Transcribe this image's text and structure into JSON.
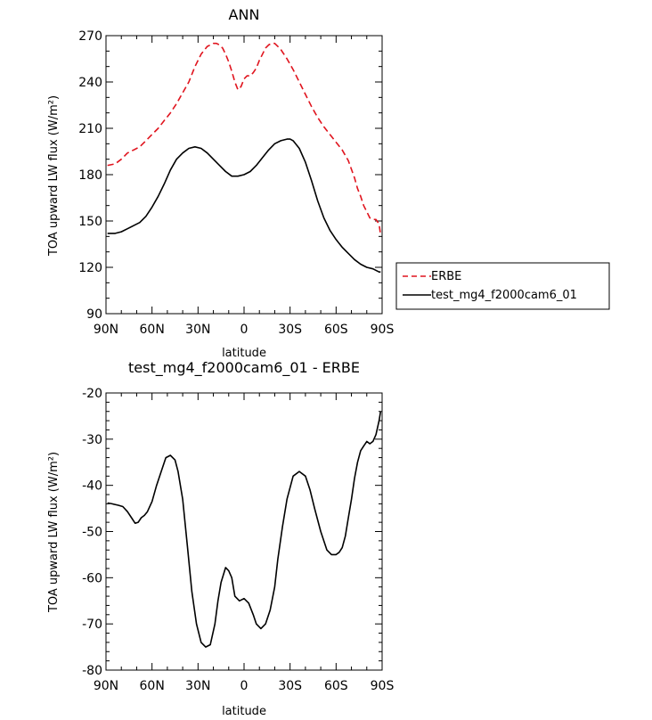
{
  "chart_data": [
    {
      "type": "line",
      "title": "ANN",
      "xlabel": "latitude",
      "ylabel": "TOA upward LW flux (W/m²)",
      "xlim": [
        90,
        -90
      ],
      "ylim": [
        90,
        270
      ],
      "x_ticks": [
        90,
        60,
        30,
        0,
        -30,
        -60,
        -90
      ],
      "x_tick_labels": [
        "90N",
        "60N",
        "30N",
        "0",
        "30S",
        "60S",
        "90S"
      ],
      "y_ticks": [
        90,
        120,
        150,
        180,
        210,
        240,
        270
      ],
      "y_tick_labels": [
        "90",
        "120",
        "150",
        "180",
        "210",
        "240",
        "270"
      ],
      "legend": {
        "placement": "right",
        "entries": [
          "ERBE",
          "test_mg4_f2000cam6_01"
        ]
      },
      "series": [
        {
          "name": "ERBE",
          "color": "#e0141e",
          "dash": "dashed",
          "x": [
            89,
            84,
            80,
            76,
            72,
            68,
            64,
            60,
            56,
            52,
            48,
            44,
            40,
            36,
            32,
            28,
            24,
            20,
            18,
            16,
            14,
            12,
            10,
            8,
            6,
            4,
            2,
            0,
            -2,
            -4,
            -6,
            -8,
            -10,
            -12,
            -14,
            -16,
            -18,
            -20,
            -22,
            -24,
            -28,
            -32,
            -36,
            -40,
            -44,
            -48,
            -52,
            -56,
            -60,
            -64,
            -68,
            -72,
            -74,
            -76,
            -78,
            -80,
            -82,
            -84,
            -86,
            -88,
            -89
          ],
          "y": [
            186,
            187,
            190,
            194,
            196,
            198,
            202,
            206,
            210,
            215,
            220,
            226,
            233,
            240,
            250,
            258,
            263,
            265,
            265,
            264,
            262,
            258,
            253,
            247,
            240,
            235,
            237,
            242,
            244,
            244,
            246,
            249,
            254,
            258,
            262,
            264,
            265,
            265,
            263,
            261,
            255,
            248,
            240,
            232,
            224,
            217,
            211,
            206,
            201,
            196,
            189,
            178,
            171,
            166,
            160,
            156,
            152,
            151,
            151,
            148,
            141
          ]
        },
        {
          "name": "test_mg4_f2000cam6_01",
          "color": "#000000",
          "dash": "solid",
          "x": [
            89,
            84,
            80,
            76,
            72,
            68,
            64,
            60,
            56,
            52,
            48,
            44,
            40,
            36,
            32,
            28,
            24,
            20,
            16,
            12,
            8,
            4,
            0,
            -4,
            -8,
            -12,
            -16,
            -20,
            -24,
            -28,
            -30,
            -32,
            -36,
            -40,
            -44,
            -48,
            -52,
            -56,
            -60,
            -64,
            -68,
            -72,
            -76,
            -80,
            -84,
            -88,
            -89
          ],
          "y": [
            142,
            142,
            143,
            145,
            147,
            149,
            153,
            159,
            166,
            174,
            183,
            190,
            194,
            197,
            198,
            197,
            194,
            190,
            186,
            182,
            179,
            179,
            180,
            182,
            186,
            191,
            196,
            200,
            202,
            203,
            203,
            202,
            197,
            188,
            176,
            163,
            152,
            144,
            138,
            133,
            129,
            125,
            122,
            120,
            119,
            117,
            117
          ]
        }
      ]
    },
    {
      "type": "line",
      "title": "test_mg4_f2000cam6_01 - ERBE",
      "xlabel": "latitude",
      "ylabel": "TOA upward LW flux (W/m²)",
      "xlim": [
        90,
        -90
      ],
      "ylim": [
        -80,
        -20
      ],
      "x_ticks": [
        90,
        60,
        30,
        0,
        -30,
        -60,
        -90
      ],
      "x_tick_labels": [
        "90N",
        "60N",
        "30N",
        "0",
        "30S",
        "60S",
        "90S"
      ],
      "y_ticks": [
        -80,
        -70,
        -60,
        -50,
        -40,
        -30,
        -20
      ],
      "y_tick_labels": [
        "-80",
        "-70",
        "-60",
        "-50",
        "-40",
        "-30",
        "-20"
      ],
      "series": [
        {
          "color": "#000000",
          "dash": "solid",
          "x": [
            89,
            86,
            82,
            79,
            76,
            73,
            71,
            69,
            67,
            65,
            63,
            60,
            57,
            54,
            51,
            48,
            45,
            43,
            40,
            37,
            34,
            31,
            28,
            25,
            22,
            19,
            17,
            15,
            12,
            10,
            8,
            6,
            3,
            0,
            -3,
            -6,
            -8,
            -11,
            -14,
            -17,
            -20,
            -22,
            -25,
            -28,
            -32,
            -36,
            -40,
            -43,
            -46,
            -50,
            -54,
            -57,
            -60,
            -62,
            -64,
            -66,
            -68,
            -70,
            -72,
            -74,
            -76,
            -78,
            -80,
            -82,
            -84,
            -86,
            -88,
            -89
          ],
          "y": [
            -43.8,
            -44,
            -44.3,
            -44.6,
            -45.7,
            -47.2,
            -48.2,
            -48,
            -47,
            -46.5,
            -45.7,
            -43.5,
            -40,
            -37,
            -34,
            -33.5,
            -34.5,
            -37,
            -43,
            -53,
            -63,
            -70,
            -74,
            -75,
            -74.5,
            -70,
            -65,
            -61,
            -57.8,
            -58.5,
            -60,
            -64,
            -65,
            -64.5,
            -65.5,
            -68,
            -70,
            -71,
            -70,
            -67,
            -62,
            -56,
            -49,
            -43,
            -38,
            -37,
            -38,
            -41,
            -45,
            -50,
            -54,
            -55,
            -55,
            -54.5,
            -53.5,
            -51,
            -47,
            -43,
            -38.5,
            -35,
            -32.5,
            -31.5,
            -30.5,
            -31,
            -30.5,
            -29,
            -26,
            -24
          ]
        }
      ]
    }
  ]
}
